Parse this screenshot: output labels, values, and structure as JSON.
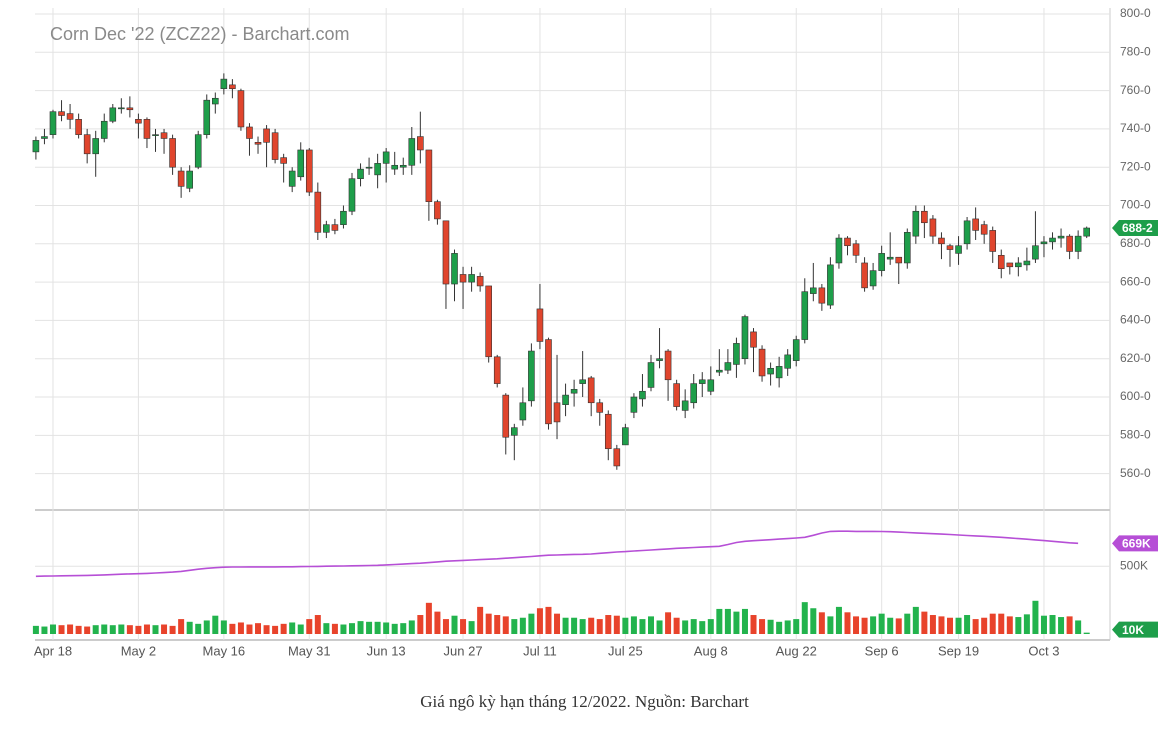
{
  "chart_data": {
    "type": "candlestick",
    "title": "Corn Dec '22 (ZCZ22) - Barchart.com",
    "categories": [
      null,
      null,
      "Apr 18",
      null,
      null,
      null,
      null,
      null,
      null,
      null,
      null,
      null,
      "May 2",
      null,
      null,
      null,
      null,
      null,
      null,
      null,
      null,
      null,
      "May 16",
      null,
      null,
      null,
      null,
      null,
      null,
      null,
      null,
      null,
      "May 31",
      null,
      null,
      null,
      null,
      null,
      null,
      null,
      null,
      "Jun 13",
      null,
      null,
      null,
      null,
      null,
      null,
      null,
      null,
      "Jun 27",
      null,
      null,
      null,
      null,
      null,
      null,
      null,
      null,
      "Jul 11",
      null,
      null,
      null,
      null,
      null,
      null,
      null,
      null,
      null,
      "Jul 25",
      null,
      null,
      null,
      null,
      null,
      null,
      null,
      null,
      null,
      "Aug 8",
      null,
      null,
      null,
      null,
      null,
      null,
      null,
      null,
      null,
      "Aug 22",
      null,
      null,
      null,
      null,
      null,
      null,
      null,
      null,
      null,
      "Sep 6",
      null,
      null,
      null,
      null,
      null,
      null,
      null,
      null,
      "Sep 19",
      null,
      null,
      null,
      null,
      null,
      null,
      null,
      null,
      null,
      "Oct 3",
      null,
      null,
      null,
      null,
      null
    ],
    "open": [
      728,
      735,
      737,
      749,
      748,
      745,
      737,
      727,
      735,
      744,
      751,
      751,
      745,
      745,
      737,
      738,
      735,
      718,
      709,
      720,
      737,
      753,
      761,
      763,
      760,
      741,
      733,
      740,
      738,
      725,
      710,
      715,
      729,
      707,
      686,
      690,
      690,
      697,
      714,
      720,
      716,
      722,
      719,
      720,
      721,
      736,
      729,
      702,
      692,
      659,
      664,
      660,
      663,
      658,
      621,
      601,
      580,
      588,
      598,
      646,
      630,
      597,
      596,
      602,
      607,
      610,
      597,
      591,
      573,
      575,
      592,
      599,
      605,
      619,
      624,
      607,
      593,
      597,
      607,
      603,
      613,
      614,
      617,
      620,
      634,
      625,
      612,
      610,
      615,
      619,
      630,
      654,
      657,
      648,
      670,
      683,
      680,
      670,
      658,
      666,
      672,
      673,
      670,
      684,
      697,
      693,
      683,
      679,
      675,
      680,
      693,
      690,
      687,
      674,
      670,
      668,
      669,
      672,
      680,
      681,
      683,
      684,
      676,
      684
    ],
    "high": [
      736,
      740,
      750,
      755,
      753,
      748,
      740,
      739,
      748,
      753,
      756,
      757,
      748,
      746,
      740,
      740,
      737,
      720,
      721,
      739,
      758,
      759,
      769,
      766,
      761,
      743,
      736,
      742,
      740,
      727,
      720,
      733,
      730,
      712,
      692,
      693,
      700,
      717,
      722,
      725,
      727,
      730,
      728,
      725,
      741,
      749,
      729,
      703,
      692,
      677,
      668,
      668,
      665,
      658,
      622,
      602,
      586,
      605,
      628,
      659,
      631,
      622,
      607,
      609,
      624,
      611,
      599,
      593,
      575,
      586,
      602,
      612,
      622,
      636,
      625,
      609,
      604,
      612,
      613,
      616,
      625,
      625,
      631,
      643,
      636,
      627,
      618,
      621,
      625,
      632,
      662,
      670,
      659,
      673,
      685,
      684,
      682,
      673,
      670,
      679,
      686,
      673,
      688,
      700,
      700,
      695,
      686,
      680,
      684,
      694,
      699,
      692,
      689,
      677,
      670,
      673,
      678,
      697,
      684,
      686,
      688,
      685,
      687,
      689
    ],
    "low": [
      724,
      732,
      735,
      744,
      740,
      735,
      722,
      715,
      733,
      743,
      748,
      746,
      735,
      730,
      728,
      727,
      716,
      704,
      707,
      719,
      735,
      748,
      758,
      756,
      739,
      726,
      727,
      720,
      722,
      712,
      707,
      713,
      705,
      682,
      683,
      685,
      688,
      695,
      710,
      716,
      709,
      712,
      716,
      716,
      716,
      722,
      692,
      690,
      646,
      650,
      646,
      655,
      655,
      618,
      605,
      570,
      567,
      585,
      595,
      625,
      583,
      578,
      590,
      595,
      600,
      590,
      585,
      567,
      562,
      575,
      589,
      595,
      603,
      615,
      598,
      593,
      589,
      594,
      600,
      601,
      611,
      612,
      610,
      617,
      613,
      608,
      606,
      605,
      611,
      616,
      628,
      650,
      645,
      646,
      667,
      674,
      670,
      655,
      656,
      663,
      669,
      659,
      667,
      680,
      683,
      680,
      672,
      668,
      669,
      677,
      682,
      680,
      670,
      662,
      664,
      663,
      666,
      670,
      673,
      677,
      678,
      672,
      672,
      683
    ],
    "close": [
      734,
      736,
      749,
      747,
      745,
      737,
      727,
      735,
      744,
      751,
      751,
      750,
      743,
      735,
      737,
      735,
      720,
      710,
      718,
      737,
      755,
      756,
      766,
      761,
      741,
      735,
      732,
      733,
      724,
      722,
      718,
      729,
      707,
      686,
      690,
      687,
      697,
      714,
      719,
      720,
      722,
      728,
      721,
      721,
      735,
      729,
      702,
      693,
      659,
      675,
      660,
      664,
      658,
      621,
      607,
      579,
      584,
      597,
      624,
      629,
      586,
      587,
      601,
      604,
      609,
      597,
      592,
      573,
      564,
      584,
      600,
      603,
      618,
      620,
      609,
      595,
      598,
      607,
      609,
      609,
      614,
      618,
      628,
      642,
      626,
      611,
      615,
      616,
      622,
      630,
      655,
      657,
      649,
      669,
      683,
      679,
      674,
      657,
      666,
      675,
      673,
      670,
      686,
      697,
      691,
      684,
      680,
      677,
      679,
      692,
      687,
      685,
      676,
      667,
      668,
      670,
      671,
      679,
      681,
      683,
      684,
      676,
      684,
      688.25
    ],
    "up_color": "#1e9e4a",
    "down_color": "#e0452d",
    "ylim": [
      541,
      800
    ],
    "yticks": [
      {
        "value": 800,
        "label": "800-0"
      },
      {
        "value": 780,
        "label": "780-0"
      },
      {
        "value": 760,
        "label": "760-0"
      },
      {
        "value": 740,
        "label": "740-0"
      },
      {
        "value": 720,
        "label": "720-0"
      },
      {
        "value": 700,
        "label": "700-0"
      },
      {
        "value": 680,
        "label": "680-0"
      },
      {
        "value": 660,
        "label": "660-0"
      },
      {
        "value": 640,
        "label": "640-0"
      },
      {
        "value": 620,
        "label": "620-0"
      },
      {
        "value": 600,
        "label": "600-0"
      },
      {
        "value": 580,
        "label": "580-0"
      },
      {
        "value": 560,
        "label": "560-0"
      }
    ],
    "price_marker": {
      "value": 688.25,
      "label": "688-2",
      "color": "#1e9e4a"
    },
    "volume": {
      "up_color": "#22b34d",
      "down_color": "#e8432b",
      "ylim": [
        0,
        900000
      ],
      "yticks": [
        {
          "value": 500000,
          "label": "500K"
        }
      ],
      "values": [
        60000,
        55000,
        70000,
        65000,
        70000,
        60000,
        55000,
        65000,
        70000,
        65000,
        70000,
        65000,
        60000,
        70000,
        65000,
        70000,
        60000,
        110000,
        90000,
        75000,
        100000,
        135000,
        100000,
        75000,
        85000,
        70000,
        80000,
        65000,
        60000,
        75000,
        85000,
        70000,
        110000,
        140000,
        80000,
        75000,
        70000,
        80000,
        95000,
        90000,
        90000,
        85000,
        75000,
        80000,
        100000,
        140000,
        230000,
        165000,
        110000,
        135000,
        110000,
        95000,
        200000,
        150000,
        140000,
        130000,
        110000,
        120000,
        150000,
        190000,
        200000,
        150000,
        120000,
        120000,
        110000,
        120000,
        110000,
        140000,
        135000,
        120000,
        130000,
        110000,
        130000,
        100000,
        160000,
        120000,
        100000,
        110000,
        95000,
        110000,
        185000,
        185000,
        165000,
        185000,
        140000,
        110000,
        105000,
        90000,
        100000,
        110000,
        235000,
        190000,
        160000,
        130000,
        200000,
        160000,
        130000,
        120000,
        130000,
        150000,
        120000,
        115000,
        150000,
        200000,
        165000,
        140000,
        130000,
        120000,
        120000,
        140000,
        110000,
        120000,
        150000,
        150000,
        130000,
        125000,
        145000,
        245000,
        135000,
        140000,
        125000,
        130000,
        100000,
        10000
      ],
      "marker": {
        "value": 10000,
        "label": "10K",
        "color": "#1e9e4a"
      }
    },
    "open_interest": {
      "color": "#b64fd6",
      "values": [
        426000,
        427000,
        428000,
        429000,
        430000,
        431000,
        432000,
        434000,
        436000,
        438000,
        441000,
        443000,
        445000,
        447000,
        450000,
        453000,
        457000,
        462000,
        470000,
        478000,
        485000,
        489000,
        493000,
        494000,
        494000,
        495000,
        495000,
        495000,
        495000,
        496000,
        496000,
        497000,
        498000,
        499000,
        500000,
        501000,
        502000,
        503000,
        504000,
        505000,
        507000,
        510000,
        513000,
        516000,
        519000,
        522000,
        527000,
        532000,
        537000,
        540000,
        543000,
        546000,
        549000,
        552000,
        555000,
        559000,
        563000,
        567000,
        572000,
        577000,
        581000,
        583000,
        585000,
        587000,
        588000,
        590000,
        595000,
        600000,
        605000,
        608000,
        612000,
        616000,
        620000,
        624000,
        628000,
        632000,
        635000,
        638000,
        641000,
        644000,
        647000,
        660000,
        675000,
        684000,
        688000,
        692000,
        696000,
        700000,
        704000,
        708000,
        713000,
        728000,
        745000,
        757000,
        758000,
        758000,
        757000,
        757000,
        757000,
        756000,
        755000,
        752000,
        749000,
        746000,
        743000,
        740000,
        737000,
        734000,
        730000,
        727000,
        724000,
        721000,
        717000,
        713000,
        709000,
        704000,
        699000,
        694000,
        689000,
        684000,
        678000,
        673000,
        669000,
        null
      ],
      "marker": {
        "value": 669000,
        "label": "669K"
      }
    }
  },
  "caption": "Giá ngô kỳ hạn tháng 12/2022. Nguồn: Barchart"
}
